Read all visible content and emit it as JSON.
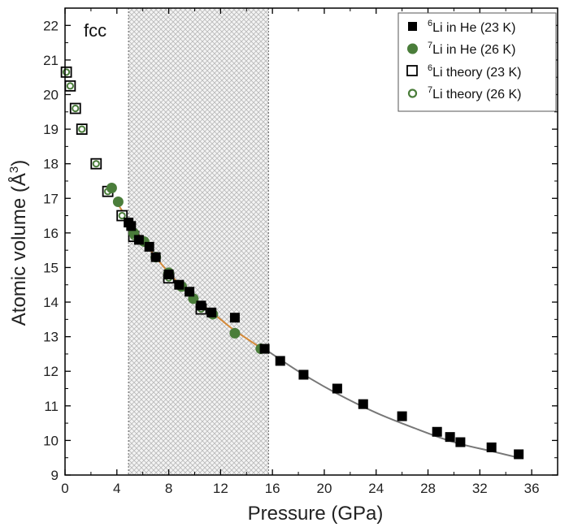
{
  "chart_data": {
    "type": "scatter",
    "panel_label": "fcc",
    "xlabel": "Pressure (GPa)",
    "ylabel_main": "Atomic volume (",
    "ylabel_unit": "Å",
    "ylabel_exp": "3",
    "ylabel_close": ")",
    "xlim": [
      0,
      38
    ],
    "ylim": [
      9,
      22.5
    ],
    "xticks": [
      0,
      4,
      8,
      12,
      16,
      20,
      24,
      28,
      32,
      36
    ],
    "yticks": [
      9,
      10,
      11,
      12,
      13,
      14,
      15,
      16,
      17,
      18,
      19,
      20,
      21,
      22
    ],
    "grid": false,
    "legend_position": "top-right",
    "shaded_region": {
      "x": [
        4.9,
        15.7
      ],
      "pattern": "crosshatch"
    },
    "colors": {
      "green": "#4a7d3a",
      "orange": "#d48a3a",
      "gray": "#777777",
      "black": "#000000"
    },
    "series": [
      {
        "name_sup": "6",
        "name_rest": "Li in He (23 K)",
        "marker": "filled-square",
        "points": [
          [
            4.9,
            16.3
          ],
          [
            5.1,
            16.2
          ],
          [
            5.7,
            15.8
          ],
          [
            6.5,
            15.6
          ],
          [
            7.0,
            15.3
          ],
          [
            8.0,
            14.8
          ],
          [
            8.8,
            14.5
          ],
          [
            9.6,
            14.3
          ],
          [
            10.5,
            13.9
          ],
          [
            11.3,
            13.7
          ],
          [
            13.1,
            13.55
          ],
          [
            15.4,
            12.65
          ],
          [
            16.6,
            12.3
          ],
          [
            18.4,
            11.9
          ],
          [
            21.0,
            11.5
          ],
          [
            23.0,
            11.05
          ],
          [
            26.0,
            10.7
          ],
          [
            28.7,
            10.25
          ],
          [
            29.7,
            10.1
          ],
          [
            30.5,
            9.95
          ],
          [
            32.9,
            9.8
          ],
          [
            35.0,
            9.6
          ]
        ]
      },
      {
        "name_sup": "7",
        "name_rest": "Li in He (26 K)",
        "marker": "filled-circle",
        "points": [
          [
            3.6,
            17.3
          ],
          [
            4.1,
            16.9
          ],
          [
            5.3,
            16.0
          ],
          [
            6.1,
            15.75
          ],
          [
            7.0,
            15.3
          ],
          [
            8.0,
            14.85
          ],
          [
            9.0,
            14.45
          ],
          [
            9.9,
            14.1
          ],
          [
            11.4,
            13.65
          ],
          [
            13.1,
            13.1
          ],
          [
            15.1,
            12.65
          ]
        ]
      },
      {
        "name_sup": "6",
        "name_rest": "Li theory (23 K)",
        "marker": "open-square",
        "points": [
          [
            0.1,
            20.65
          ],
          [
            0.4,
            20.25
          ],
          [
            0.8,
            19.6
          ],
          [
            1.3,
            19.0
          ],
          [
            2.4,
            18.0
          ],
          [
            3.3,
            17.2
          ],
          [
            4.4,
            16.5
          ],
          [
            5.3,
            15.9
          ],
          [
            8.0,
            14.7
          ],
          [
            10.5,
            13.8
          ]
        ]
      },
      {
        "name_sup": "7",
        "name_rest": "Li theory (26 K)",
        "marker": "open-circle",
        "points": [
          [
            0.1,
            20.65
          ],
          [
            0.4,
            20.25
          ],
          [
            0.8,
            19.6
          ],
          [
            1.3,
            19.0
          ],
          [
            2.4,
            18.0
          ],
          [
            3.3,
            17.2
          ],
          [
            4.4,
            16.5
          ],
          [
            5.3,
            15.9
          ],
          [
            8.0,
            14.7
          ],
          [
            10.5,
            13.8
          ]
        ]
      }
    ],
    "fits": [
      {
        "color": "gray",
        "points": [
          [
            15.0,
            12.75
          ],
          [
            18,
            12.0
          ],
          [
            21,
            11.35
          ],
          [
            24,
            10.8
          ],
          [
            27,
            10.35
          ],
          [
            30,
            9.95
          ],
          [
            33,
            9.68
          ],
          [
            35.0,
            9.5
          ]
        ]
      },
      {
        "color": "orange",
        "points": [
          [
            3.8,
            17.0
          ],
          [
            5,
            16.3
          ],
          [
            6,
            15.8
          ],
          [
            7,
            15.3
          ],
          [
            8,
            14.85
          ],
          [
            9,
            14.45
          ],
          [
            10,
            14.1
          ],
          [
            11,
            13.8
          ],
          [
            12,
            13.5
          ],
          [
            13,
            13.2
          ],
          [
            14,
            12.95
          ],
          [
            15.2,
            12.65
          ]
        ]
      }
    ]
  }
}
